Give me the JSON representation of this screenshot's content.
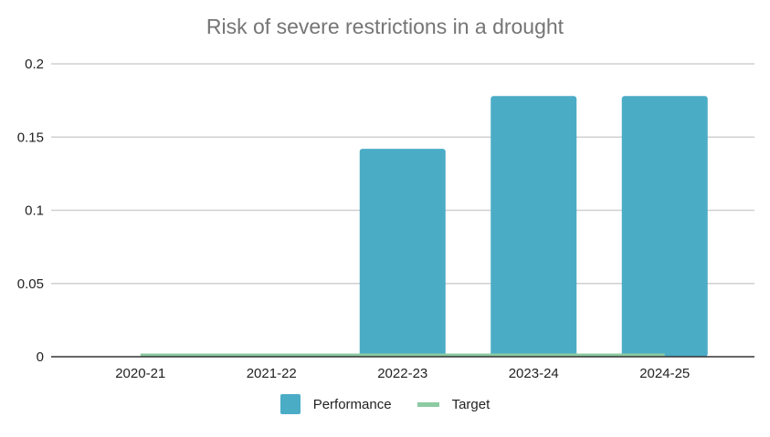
{
  "chart_data": {
    "type": "bar",
    "title": "Risk of severe restrictions in a drought",
    "categories": [
      "2020-21",
      "2021-22",
      "2022-23",
      "2023-24",
      "2024-25"
    ],
    "series": [
      {
        "name": "Performance",
        "kind": "bar",
        "color": "#4BACC6",
        "values": [
          0,
          0,
          0.142,
          0.178,
          0.178
        ]
      },
      {
        "name": "Target",
        "kind": "line",
        "color": "#8CCBA2",
        "values": [
          0,
          0,
          0,
          0,
          0
        ]
      }
    ],
    "y_ticks": [
      "0",
      "0.05",
      "0.1",
      "0.15",
      "0.2"
    ],
    "ylim": [
      0,
      0.2
    ],
    "grid": true,
    "legend_position": "bottom"
  }
}
